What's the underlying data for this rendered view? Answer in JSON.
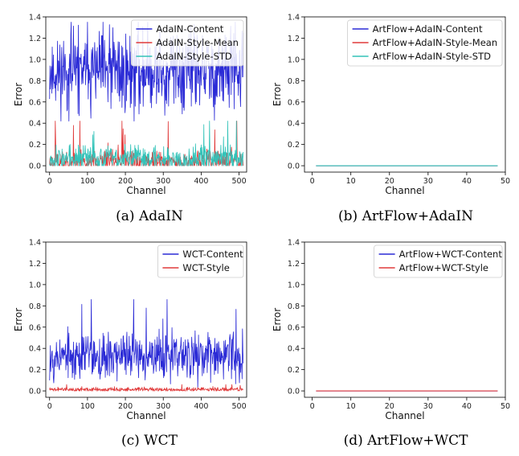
{
  "chart_data": [
    {
      "type": "line",
      "caption": "(a) AdaIN",
      "xlabel": "Channel",
      "ylabel": "Error",
      "xlim": [
        -10,
        520
      ],
      "ylim": [
        -0.06,
        1.4
      ],
      "xticks": [
        0,
        100,
        200,
        300,
        400,
        500
      ],
      "yticks": [
        0.0,
        0.2,
        0.4,
        0.6,
        0.8,
        1.0,
        1.2,
        1.4
      ],
      "legend_position": "top-right",
      "series": [
        {
          "name": "AdaIN-Content",
          "color": "#2b2bd6",
          "n": 512,
          "mean": 0.88,
          "spread": 0.2,
          "min": 0.42,
          "max": 1.35,
          "seed": 11
        },
        {
          "name": "AdaIN-Style-Mean",
          "color": "#e03a3a",
          "n": 512,
          "mean": 0.04,
          "spread": 0.05,
          "min": 0.0,
          "max": 0.42,
          "seed": 23
        },
        {
          "name": "AdaIN-Style-STD",
          "color": "#33c3b9",
          "n": 512,
          "mean": 0.07,
          "spread": 0.06,
          "min": 0.0,
          "max": 0.42,
          "seed": 37
        }
      ]
    },
    {
      "type": "line",
      "caption": "(b) ArtFlow+AdaIN",
      "xlabel": "Channel",
      "ylabel": "Error",
      "xlim": [
        -2,
        50
      ],
      "ylim": [
        -0.06,
        1.4
      ],
      "xticks": [
        0,
        10,
        20,
        30,
        40,
        50
      ],
      "yticks": [
        0.0,
        0.2,
        0.4,
        0.6,
        0.8,
        1.0,
        1.2,
        1.4
      ],
      "legend_position": "top-right",
      "series": [
        {
          "name": "ArtFlow+AdaIN-Content",
          "color": "#2b2bd6",
          "x": [
            1,
            48
          ],
          "y": [
            0.0,
            0.0
          ]
        },
        {
          "name": "ArtFlow+AdaIN-Style-Mean",
          "color": "#e03a3a",
          "x": [
            1,
            48
          ],
          "y": [
            0.0,
            0.0
          ]
        },
        {
          "name": "ArtFlow+AdaIN-Style-STD",
          "color": "#33c3b9",
          "x": [
            1,
            48
          ],
          "y": [
            0.0,
            0.0
          ]
        }
      ]
    },
    {
      "type": "line",
      "caption": "(c) WCT",
      "xlabel": "Channel",
      "ylabel": "Error",
      "xlim": [
        -10,
        520
      ],
      "ylim": [
        -0.06,
        1.4
      ],
      "xticks": [
        0,
        100,
        200,
        300,
        400,
        500
      ],
      "yticks": [
        0.0,
        0.2,
        0.4,
        0.6,
        0.8,
        1.0,
        1.2,
        1.4
      ],
      "legend_position": "top-right",
      "series": [
        {
          "name": "WCT-Content",
          "color": "#2b2bd6",
          "n": 512,
          "mean": 0.33,
          "spread": 0.11,
          "min": 0.03,
          "max": 0.86,
          "seed": 53
        },
        {
          "name": "WCT-Style",
          "color": "#e03a3a",
          "n": 512,
          "mean": 0.012,
          "spread": 0.01,
          "min": 0.0,
          "max": 0.06,
          "seed": 71
        }
      ]
    },
    {
      "type": "line",
      "caption": "(d) ArtFlow+WCT",
      "xlabel": "Channel",
      "ylabel": "Error",
      "xlim": [
        -2,
        50
      ],
      "ylim": [
        -0.06,
        1.4
      ],
      "xticks": [
        0,
        10,
        20,
        30,
        40,
        50
      ],
      "yticks": [
        0.0,
        0.2,
        0.4,
        0.6,
        0.8,
        1.0,
        1.2,
        1.4
      ],
      "legend_position": "top-right",
      "series": [
        {
          "name": "ArtFlow+WCT-Content",
          "color": "#2b2bd6",
          "x": [
            1,
            48
          ],
          "y": [
            0.0,
            0.0
          ]
        },
        {
          "name": "ArtFlow+WCT-Style",
          "color": "#e03a3a",
          "x": [
            1,
            48
          ],
          "y": [
            0.0,
            0.0
          ]
        }
      ]
    }
  ]
}
